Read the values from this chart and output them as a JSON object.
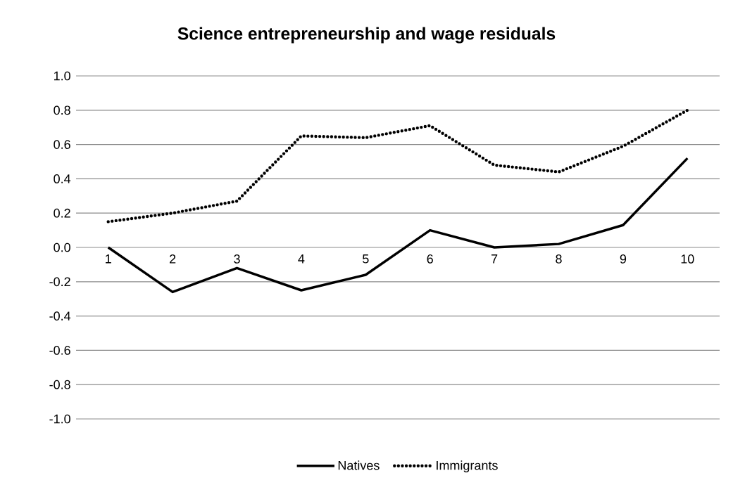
{
  "chart_data": {
    "type": "line",
    "title": "Science entrepreneurship and wage residuals",
    "categories": [
      "1",
      "2",
      "3",
      "4",
      "5",
      "6",
      "7",
      "8",
      "9",
      "10"
    ],
    "series": [
      {
        "name": "Natives",
        "color": "#000000",
        "line_style": "solid",
        "values": [
          0.0,
          -0.26,
          -0.12,
          -0.25,
          -0.16,
          0.1,
          0.0,
          0.02,
          0.13,
          0.52
        ]
      },
      {
        "name": "Immigrants",
        "color": "#000000",
        "line_style": "dotted",
        "values": [
          0.15,
          0.2,
          0.27,
          0.65,
          0.64,
          0.71,
          0.48,
          0.44,
          0.59,
          0.8
        ]
      }
    ],
    "ylim": [
      -1.0,
      1.0
    ],
    "yticks": [
      {
        "value": -1.0,
        "label": "-1.0"
      },
      {
        "value": -0.8,
        "label": "-0.8"
      },
      {
        "value": -0.6,
        "label": "-0.6"
      },
      {
        "value": -0.4,
        "label": "-0.4"
      },
      {
        "value": -0.2,
        "label": "-0.2"
      },
      {
        "value": 0.0,
        "label": "0.0"
      },
      {
        "value": 0.2,
        "label": "0.2"
      },
      {
        "value": 0.4,
        "label": "0.4"
      },
      {
        "value": 0.6,
        "label": "0.6"
      },
      {
        "value": 0.8,
        "label": "0.8"
      },
      {
        "value": 1.0,
        "label": "1.0"
      }
    ],
    "grid": "y",
    "legend": "bottom",
    "marker": "none"
  }
}
